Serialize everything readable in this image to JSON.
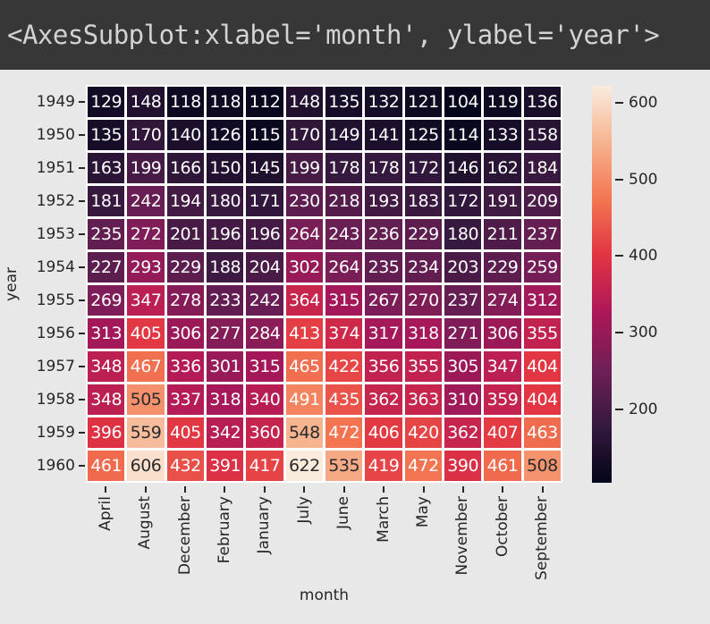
{
  "console": {
    "output": "<AxesSubplot:xlabel='month', ylabel='year'>"
  },
  "chart_data": {
    "type": "heatmap",
    "title": "",
    "xlabel": "month",
    "ylabel": "year",
    "x_categories": [
      "April",
      "August",
      "December",
      "February",
      "January",
      "July",
      "June",
      "March",
      "May",
      "November",
      "October",
      "September"
    ],
    "y_categories": [
      "1949",
      "1950",
      "1951",
      "1952",
      "1953",
      "1954",
      "1955",
      "1956",
      "1957",
      "1958",
      "1959",
      "1960"
    ],
    "values": [
      [
        129,
        148,
        118,
        118,
        112,
        148,
        135,
        132,
        121,
        104,
        119,
        136
      ],
      [
        135,
        170,
        140,
        126,
        115,
        170,
        149,
        141,
        125,
        114,
        133,
        158
      ],
      [
        163,
        199,
        166,
        150,
        145,
        199,
        178,
        178,
        172,
        146,
        162,
        184
      ],
      [
        181,
        242,
        194,
        180,
        171,
        230,
        218,
        193,
        183,
        172,
        191,
        209
      ],
      [
        235,
        272,
        201,
        196,
        196,
        264,
        243,
        236,
        229,
        180,
        211,
        237
      ],
      [
        227,
        293,
        229,
        188,
        204,
        302,
        264,
        235,
        234,
        203,
        229,
        259
      ],
      [
        269,
        347,
        278,
        233,
        242,
        364,
        315,
        267,
        270,
        237,
        274,
        312
      ],
      [
        313,
        405,
        306,
        277,
        284,
        413,
        374,
        317,
        318,
        271,
        306,
        355
      ],
      [
        348,
        467,
        336,
        301,
        315,
        465,
        422,
        356,
        355,
        305,
        347,
        404
      ],
      [
        348,
        505,
        337,
        318,
        340,
        491,
        435,
        362,
        363,
        310,
        359,
        404
      ],
      [
        396,
        559,
        405,
        342,
        360,
        548,
        472,
        406,
        420,
        362,
        407,
        463
      ],
      [
        461,
        606,
        432,
        391,
        417,
        622,
        535,
        419,
        472,
        390,
        461,
        508
      ]
    ],
    "vmin": 104,
    "vmax": 622,
    "annotated": true,
    "colormap": "rocket",
    "colorbar_ticks": [
      600,
      500,
      400,
      300,
      200
    ],
    "legend_position": "right-colorbar",
    "grid": false
  },
  "style": {
    "topbar_bg": "#373737",
    "topbar_text": "#d3d3d3",
    "figure_bg": "#e8e8e8",
    "tick_color": "#262626",
    "cell_gap_color": "#ffffff",
    "annot_light": "#ffffff",
    "annot_dark": "#2b2b2b",
    "rocket_stops": [
      [
        0.0,
        "#03051A"
      ],
      [
        0.143,
        "#35193E"
      ],
      [
        0.286,
        "#701F57"
      ],
      [
        0.429,
        "#AD1759"
      ],
      [
        0.571,
        "#E13342"
      ],
      [
        0.714,
        "#F37651"
      ],
      [
        0.857,
        "#F6B48F"
      ],
      [
        1.0,
        "#FAEBDD"
      ]
    ]
  }
}
